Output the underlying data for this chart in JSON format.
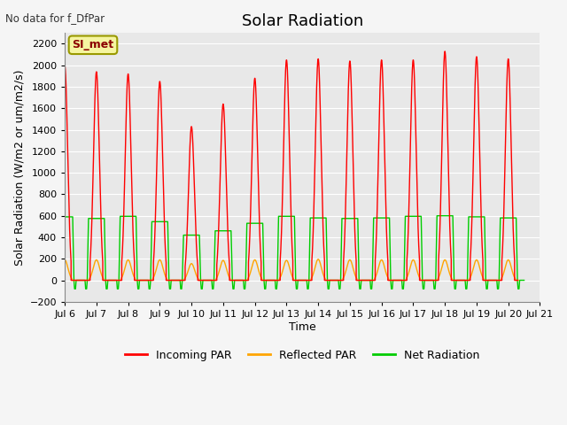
{
  "title": "Solar Radiation",
  "top_left_text": "No data for f_DfPar",
  "ylabel": "Solar Radiation (W/m2 or um/m2/s)",
  "xlabel": "Time",
  "ylim": [
    -200,
    2300
  ],
  "yticks": [
    -200,
    0,
    200,
    400,
    600,
    800,
    1000,
    1200,
    1400,
    1600,
    1800,
    2000,
    2200
  ],
  "xlim_start": 6,
  "xlim_end": 21,
  "xtick_labels": [
    "Jul 6",
    "Jul 7",
    "Jul 8",
    "Jul 9",
    "Jul 10",
    "Jul 11",
    "Jul 12",
    "Jul 13",
    "Jul 14",
    "Jul 15",
    "Jul 16",
    "Jul 17",
    "Jul 18",
    "Jul 19",
    "Jul 20",
    "Jul 21"
  ],
  "xtick_positions": [
    6,
    7,
    8,
    9,
    10,
    11,
    12,
    13,
    14,
    15,
    16,
    17,
    18,
    19,
    20,
    21
  ],
  "legend_entries": [
    "Incoming PAR",
    "Reflected PAR",
    "Net Radiation"
  ],
  "legend_colors": [
    "#ff0000",
    "#ffa500",
    "#00cc00"
  ],
  "line_colors": {
    "incoming": "#ff0000",
    "reflected": "#ffa500",
    "net": "#00cc00"
  },
  "annotation_box_text": "SI_met",
  "background_color": "#e8e8e8",
  "plot_bg_color": "#e8e8e8",
  "fig_bg_color": "#f5f5f5",
  "grid_color": "#ffffff",
  "title_fontsize": 13,
  "axis_fontsize": 9,
  "tick_fontsize": 8,
  "legend_fontsize": 9,
  "days": [
    6,
    7,
    8,
    9,
    10,
    11,
    12,
    13,
    14,
    15,
    16,
    17,
    18,
    19,
    20
  ],
  "incoming_peaks": [
    2000,
    1940,
    1920,
    1850,
    1430,
    1640,
    1880,
    2050,
    2060,
    2040,
    2050,
    2050,
    2130,
    2080,
    2060
  ],
  "reflected_peaks": [
    190,
    190,
    190,
    190,
    155,
    185,
    190,
    185,
    195,
    190,
    190,
    190,
    190,
    190,
    190
  ],
  "net_peaks": [
    590,
    575,
    595,
    545,
    420,
    460,
    530,
    595,
    580,
    575,
    580,
    595,
    600,
    590,
    580
  ],
  "net_negative": -80,
  "line_width": 1.0
}
